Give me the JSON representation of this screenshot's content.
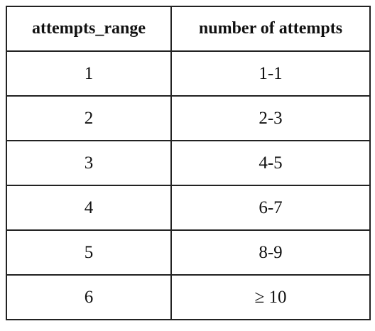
{
  "table": {
    "headers": [
      "attempts_range",
      "number of attempts"
    ],
    "rows": [
      [
        "1",
        "1-1"
      ],
      [
        "2",
        "2-3"
      ],
      [
        "3",
        "4-5"
      ],
      [
        "4",
        "6-7"
      ],
      [
        "5",
        "8-9"
      ],
      [
        "6",
        "≥ 10"
      ]
    ]
  }
}
